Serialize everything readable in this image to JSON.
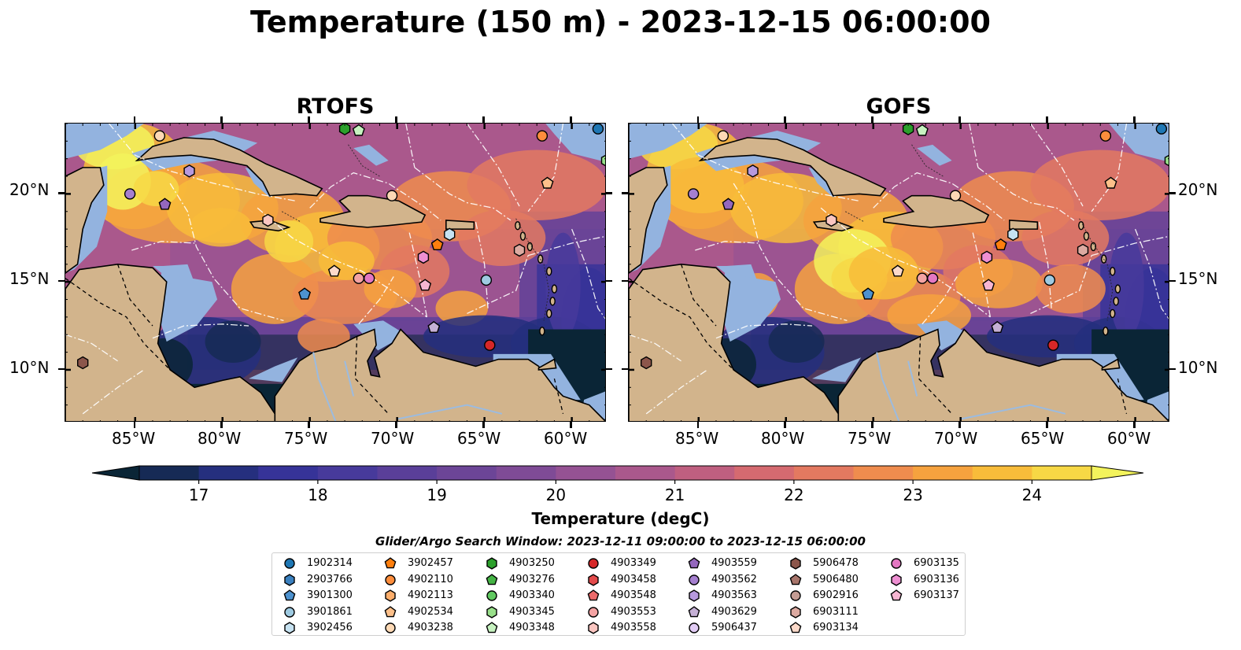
{
  "title": "Temperature (150 m) - 2023-12-15 06:00:00",
  "panels": [
    {
      "title": "RTOFS",
      "variant": "rtofs"
    },
    {
      "title": "GOFS",
      "variant": "gofs"
    }
  ],
  "axes": {
    "lon_ticks": [
      "85°W",
      "80°W",
      "75°W",
      "70°W",
      "65°W",
      "60°W"
    ],
    "lat_ticks": [
      "20°N",
      "15°N",
      "10°N"
    ],
    "lon_range": [
      -89,
      -58
    ],
    "lat_range": [
      7,
      24
    ]
  },
  "colorbar": {
    "label": "Temperature (degC)",
    "min": 16.5,
    "max": 24.5,
    "step": 0.5,
    "ticks": [
      "17",
      "18",
      "19",
      "20",
      "21",
      "22",
      "23",
      "24"
    ],
    "extend": "both",
    "colors": [
      "#0a2536",
      "#162a55",
      "#252f7e",
      "#363398",
      "#473a9b",
      "#5a3f99",
      "#6c4597",
      "#7f4b96",
      "#955293",
      "#aa588c",
      "#bf5f80",
      "#d56a70",
      "#e37960",
      "#ef8c4e",
      "#f6a23e",
      "#f8bc3a",
      "#f7d845",
      "#f3f35c"
    ]
  },
  "legend": {
    "title": "Glider/Argo Search Window: 2023-12-11 09:00:00 to 2023-12-15 06:00:00",
    "entries": [
      {
        "id": "1902314",
        "shape": "circle",
        "color": "#1f77b4"
      },
      {
        "id": "2903766",
        "shape": "hexagon",
        "color": "#3a80bf"
      },
      {
        "id": "3901300",
        "shape": "pentagon",
        "color": "#4d92cf"
      },
      {
        "id": "3901861",
        "shape": "circle",
        "color": "#9ecae1"
      },
      {
        "id": "3902456",
        "shape": "hexagon",
        "color": "#c6e2f1"
      },
      {
        "id": "3902457",
        "shape": "pentagon",
        "color": "#ff7f0e"
      },
      {
        "id": "4902110",
        "shape": "circle",
        "color": "#fd8d3c"
      },
      {
        "id": "4902113",
        "shape": "hexagon",
        "color": "#fdae6b"
      },
      {
        "id": "4902534",
        "shape": "pentagon",
        "color": "#fdc08a"
      },
      {
        "id": "4903238",
        "shape": "circle",
        "color": "#fdd9b5"
      },
      {
        "id": "4903250",
        "shape": "hexagon",
        "color": "#2ca02c"
      },
      {
        "id": "4903276",
        "shape": "pentagon",
        "color": "#45b445"
      },
      {
        "id": "4903340",
        "shape": "circle",
        "color": "#60c960"
      },
      {
        "id": "4903345",
        "shape": "hexagon",
        "color": "#98df8a"
      },
      {
        "id": "4903348",
        "shape": "pentagon",
        "color": "#c7f2c0"
      },
      {
        "id": "4903349",
        "shape": "circle",
        "color": "#d62728"
      },
      {
        "id": "4903458",
        "shape": "hexagon",
        "color": "#e34a4b"
      },
      {
        "id": "4903548",
        "shape": "pentagon",
        "color": "#ec6a6a"
      },
      {
        "id": "4903553",
        "shape": "circle",
        "color": "#f4a3a3"
      },
      {
        "id": "4903558",
        "shape": "hexagon",
        "color": "#fbc6c1"
      },
      {
        "id": "4903559",
        "shape": "pentagon",
        "color": "#9467bd"
      },
      {
        "id": "4903562",
        "shape": "circle",
        "color": "#a57fcf"
      },
      {
        "id": "4903563",
        "shape": "hexagon",
        "color": "#b799de"
      },
      {
        "id": "4903629",
        "shape": "pentagon",
        "color": "#c5b0d5"
      },
      {
        "id": "5906437",
        "shape": "circle",
        "color": "#e2ccf5"
      },
      {
        "id": "5906478",
        "shape": "hexagon",
        "color": "#8c564b"
      },
      {
        "id": "5906480",
        "shape": "pentagon",
        "color": "#a8756b"
      },
      {
        "id": "6902916",
        "shape": "circle",
        "color": "#c49c94"
      },
      {
        "id": "6903111",
        "shape": "hexagon",
        "color": "#dcaaa1"
      },
      {
        "id": "6903134",
        "shape": "pentagon",
        "color": "#fcd9c9"
      },
      {
        "id": "6903135",
        "shape": "circle",
        "color": "#e377c2"
      },
      {
        "id": "6903136",
        "shape": "hexagon",
        "color": "#ee8fd2"
      },
      {
        "id": "6903137",
        "shape": "pentagon",
        "color": "#f7b6d2"
      }
    ]
  },
  "markers": [
    {
      "shape": "circle",
      "color": "#fdd9b5",
      "lon": -83.6,
      "lat": 23.3
    },
    {
      "shape": "hexagon",
      "color": "#b799de",
      "lon": -81.9,
      "lat": 21.3
    },
    {
      "shape": "circle",
      "color": "#a57fcf",
      "lon": -85.3,
      "lat": 20.0
    },
    {
      "shape": "pentagon",
      "color": "#9467bd",
      "lon": -83.3,
      "lat": 19.4
    },
    {
      "shape": "hexagon",
      "color": "#2ca02c",
      "lon": -73.0,
      "lat": 23.7
    },
    {
      "shape": "pentagon",
      "color": "#c7f2c0",
      "lon": -72.2,
      "lat": 23.6
    },
    {
      "shape": "circle",
      "color": "#fd8d3c",
      "lon": -61.7,
      "lat": 23.3
    },
    {
      "shape": "circle",
      "color": "#1f77b4",
      "lon": -58.5,
      "lat": 23.7
    },
    {
      "shape": "hexagon",
      "color": "#98df8a",
      "lon": -58.0,
      "lat": 21.9
    },
    {
      "shape": "pentagon",
      "color": "#fdc08a",
      "lon": -61.4,
      "lat": 20.6
    },
    {
      "shape": "circle",
      "color": "#fdd9b5",
      "lon": -70.3,
      "lat": 19.9
    },
    {
      "shape": "hexagon",
      "color": "#fbc6c1",
      "lon": -77.4,
      "lat": 18.5
    },
    {
      "shape": "hexagon",
      "color": "#c6e2f1",
      "lon": -67.0,
      "lat": 17.7
    },
    {
      "shape": "pentagon",
      "color": "#ff7f0e",
      "lon": -67.7,
      "lat": 17.1
    },
    {
      "shape": "hexagon",
      "color": "#dcaaa1",
      "lon": -63.0,
      "lat": 16.8
    },
    {
      "shape": "hexagon",
      "color": "#ee8fd2",
      "lon": -68.5,
      "lat": 16.4
    },
    {
      "shape": "pentagon",
      "color": "#fcd9c9",
      "lon": -73.6,
      "lat": 15.6
    },
    {
      "shape": "circle",
      "color": "#f4a3a3",
      "lon": -72.2,
      "lat": 15.2
    },
    {
      "shape": "circle",
      "color": "#e377c2",
      "lon": -71.6,
      "lat": 15.2
    },
    {
      "shape": "circle",
      "color": "#9ecae1",
      "lon": -64.9,
      "lat": 15.1
    },
    {
      "shape": "pentagon",
      "color": "#f7b6d2",
      "lon": -68.4,
      "lat": 14.8
    },
    {
      "shape": "pentagon",
      "color": "#4d92cf",
      "lon": -75.3,
      "lat": 14.3
    },
    {
      "shape": "pentagon",
      "color": "#c5b0d5",
      "lon": -67.9,
      "lat": 12.4
    },
    {
      "shape": "circle",
      "color": "#d62728",
      "lon": -64.7,
      "lat": 11.4
    },
    {
      "shape": "hexagon",
      "color": "#8c564b",
      "lon": -88.0,
      "lat": 10.4
    }
  ]
}
